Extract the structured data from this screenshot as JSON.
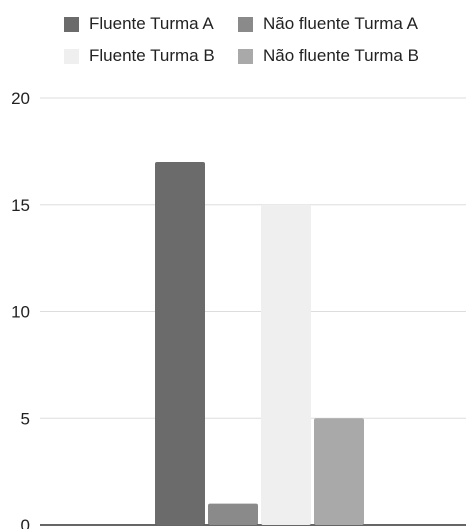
{
  "chart_data": {
    "type": "bar",
    "title": "",
    "xlabel": "",
    "ylabel": "",
    "ylim": [
      0,
      20
    ],
    "yticks": [
      0,
      5,
      10,
      15,
      20
    ],
    "grid": true,
    "legend_position": "top",
    "categories": [
      ""
    ],
    "series": [
      {
        "name": "Fluente Turma A",
        "values": [
          17
        ],
        "color": "#6b6b6b"
      },
      {
        "name": "Não fluente Turma A",
        "values": [
          1
        ],
        "color": "#8a8a8a"
      },
      {
        "name": "Fluente Turma B",
        "values": [
          15
        ],
        "color": "#efefef"
      },
      {
        "name": "Não fluente Turma B",
        "values": [
          5
        ],
        "color": "#a9a9a9"
      }
    ]
  }
}
